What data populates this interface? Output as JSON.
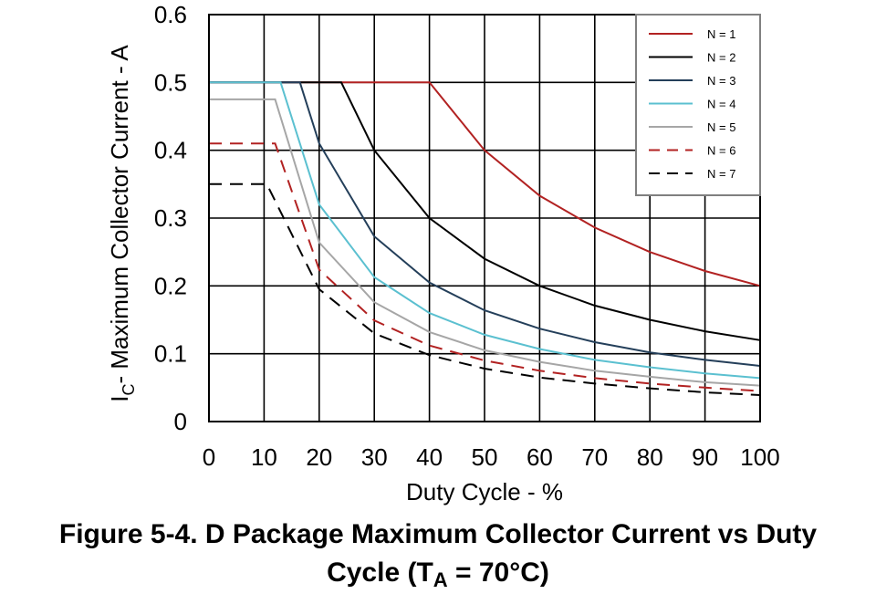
{
  "caption": {
    "line1": "Figure 5-4. D Package Maximum Collector Current vs Duty",
    "line2_prefix": "Cycle (T",
    "line2_sub": "A",
    "line2_suffix": " = 70°C)"
  },
  "chart_data": {
    "type": "line",
    "title": "",
    "xlabel": "Duty Cycle - %",
    "ylabel_prefix": "I",
    "ylabel_sub": "C",
    "ylabel_suffix": "- Maximum Collector Current - A",
    "xlim": [
      0,
      100
    ],
    "ylim": [
      0,
      0.6
    ],
    "x_ticks": [
      0,
      10,
      20,
      30,
      40,
      50,
      60,
      70,
      80,
      90,
      100
    ],
    "y_ticks": [
      0,
      0.1,
      0.2,
      0.3,
      0.4,
      0.5,
      0.6
    ],
    "x_tick_labels": [
      "0",
      "10",
      "20",
      "30",
      "40",
      "50",
      "60",
      "70",
      "80",
      "90",
      "100"
    ],
    "y_tick_labels": [
      "0",
      "0.1",
      "0.2",
      "0.3",
      "0.4",
      "0.5",
      "0.6"
    ],
    "grid": true,
    "legend_position": "top-right",
    "series": [
      {
        "name": "N = 1",
        "color": "#b22222",
        "dash": "solid",
        "points": [
          [
            0,
            0.5
          ],
          [
            40,
            0.5
          ],
          [
            50,
            0.4
          ],
          [
            60,
            0.333
          ],
          [
            70,
            0.286
          ],
          [
            80,
            0.25
          ],
          [
            90,
            0.222
          ],
          [
            100,
            0.2
          ]
        ]
      },
      {
        "name": "N = 2",
        "color": "#000000",
        "dash": "solid",
        "points": [
          [
            0,
            0.5
          ],
          [
            24,
            0.5
          ],
          [
            30,
            0.4
          ],
          [
            40,
            0.3
          ],
          [
            50,
            0.24
          ],
          [
            60,
            0.2
          ],
          [
            70,
            0.171
          ],
          [
            80,
            0.15
          ],
          [
            90,
            0.133
          ],
          [
            100,
            0.12
          ]
        ]
      },
      {
        "name": "N = 3",
        "color": "#243f5a",
        "dash": "solid",
        "points": [
          [
            0,
            0.5
          ],
          [
            16.5,
            0.5
          ],
          [
            20,
            0.41
          ],
          [
            30,
            0.273
          ],
          [
            40,
            0.205
          ],
          [
            50,
            0.164
          ],
          [
            60,
            0.137
          ],
          [
            70,
            0.117
          ],
          [
            80,
            0.102
          ],
          [
            90,
            0.091
          ],
          [
            100,
            0.082
          ]
        ]
      },
      {
        "name": "N = 4",
        "color": "#5bc0d0",
        "dash": "solid",
        "points": [
          [
            0,
            0.5
          ],
          [
            13,
            0.5
          ],
          [
            20,
            0.32
          ],
          [
            30,
            0.213
          ],
          [
            40,
            0.16
          ],
          [
            50,
            0.128
          ],
          [
            60,
            0.107
          ],
          [
            70,
            0.091
          ],
          [
            80,
            0.08
          ],
          [
            90,
            0.071
          ],
          [
            100,
            0.064
          ]
        ]
      },
      {
        "name": "N = 5",
        "color": "#a6a6a6",
        "dash": "solid",
        "points": [
          [
            0,
            0.475
          ],
          [
            12,
            0.475
          ],
          [
            20,
            0.264
          ],
          [
            30,
            0.176
          ],
          [
            40,
            0.132
          ],
          [
            50,
            0.105
          ],
          [
            60,
            0.088
          ],
          [
            70,
            0.075
          ],
          [
            80,
            0.066
          ],
          [
            90,
            0.058
          ],
          [
            100,
            0.053
          ]
        ]
      },
      {
        "name": "N = 6",
        "color": "#b22222",
        "dash": "dashed",
        "points": [
          [
            0,
            0.41
          ],
          [
            12,
            0.41
          ],
          [
            20,
            0.224
          ],
          [
            30,
            0.149
          ],
          [
            40,
            0.112
          ],
          [
            50,
            0.09
          ],
          [
            60,
            0.075
          ],
          [
            70,
            0.064
          ],
          [
            80,
            0.056
          ],
          [
            90,
            0.05
          ],
          [
            100,
            0.045
          ]
        ]
      },
      {
        "name": "N = 7",
        "color": "#000000",
        "dash": "dashed",
        "points": [
          [
            0,
            0.35
          ],
          [
            10.5,
            0.35
          ],
          [
            20,
            0.195
          ],
          [
            30,
            0.13
          ],
          [
            40,
            0.098
          ],
          [
            50,
            0.078
          ],
          [
            60,
            0.065
          ],
          [
            70,
            0.056
          ],
          [
            80,
            0.049
          ],
          [
            90,
            0.043
          ],
          [
            100,
            0.039
          ]
        ]
      }
    ]
  }
}
